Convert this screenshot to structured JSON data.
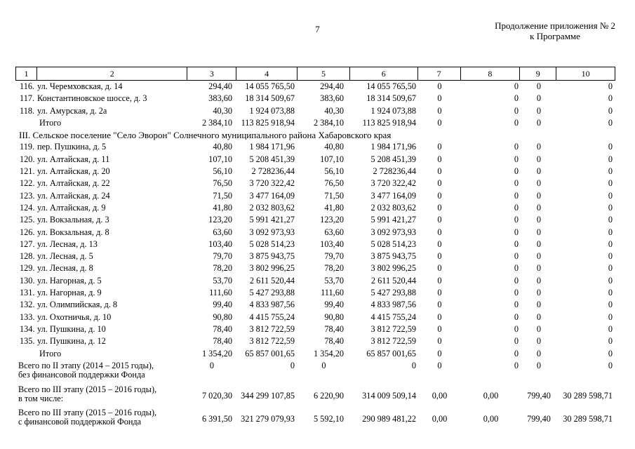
{
  "colors": {
    "text": "#000000",
    "background": "#ffffff",
    "border": "#000000"
  },
  "page_header": {
    "page_number": "7",
    "continuation_line1": "Продолжение приложения № 2",
    "continuation_line2": "к Программе"
  },
  "table": {
    "columns": [
      "1",
      "2",
      "3",
      "4",
      "5",
      "6",
      "7",
      "8",
      "9",
      "10"
    ],
    "rows": [
      {
        "type": "data",
        "cells": [
          "116.",
          "ул. Черемховская, д. 14",
          "294,40",
          "14 055 765,50",
          "294,40",
          "14 055 765,50",
          "0",
          "0",
          "0",
          "0"
        ]
      },
      {
        "type": "data",
        "cells": [
          "117.",
          "Константиновское шоссе, д. 3",
          "383,60",
          "18 314 509,67",
          "383,60",
          "18 314 509,67",
          "0",
          "0",
          "0",
          "0"
        ]
      },
      {
        "type": "data",
        "cells": [
          "118.",
          "ул. Амурская, д. 2а",
          "40,30",
          "1 924 073,88",
          "40,30",
          "1 924 073,88",
          "0",
          "0",
          "0",
          "0"
        ]
      },
      {
        "type": "total",
        "cells": [
          "",
          "Итого",
          "2 384,10",
          "113 825 918,94",
          "2 384,10",
          "113 825 918,94",
          "0",
          "0",
          "0",
          "0"
        ]
      },
      {
        "type": "section",
        "label": "III. Сельское поселение \"Село Эворон\" Солнечного муниципального района Хабаровского края"
      },
      {
        "type": "data",
        "cells": [
          "119.",
          "пер. Пушкина, д. 5",
          "40,80",
          "1 984 171,96",
          "40,80",
          "1 984 171,96",
          "0",
          "0",
          "0",
          "0"
        ]
      },
      {
        "type": "data",
        "cells": [
          "120.",
          "ул. Алтайская, д. 11",
          "107,10",
          "5 208 451,39",
          "107,10",
          "5 208 451,39",
          "0",
          "0",
          "0",
          "0"
        ]
      },
      {
        "type": "data",
        "cells": [
          "121.",
          "ул. Алтайская, д. 20",
          "56,10",
          "2 728236,44",
          "56,10",
          "2 728236,44",
          "0",
          "0",
          "0",
          "0"
        ]
      },
      {
        "type": "data",
        "cells": [
          "122.",
          "ул. Алтайская, д. 22",
          "76,50",
          "3 720 322,42",
          "76,50",
          "3 720 322,42",
          "0",
          "0",
          "0",
          "0"
        ]
      },
      {
        "type": "data",
        "cells": [
          "123.",
          "ул. Алтайская, д. 24",
          "71,50",
          "3 477 164,09",
          "71,50",
          "3 477 164,09",
          "0",
          "0",
          "0",
          "0"
        ]
      },
      {
        "type": "data",
        "cells": [
          "124.",
          "ул. Алтайская, д. 9",
          "41,80",
          "2 032 803,62",
          "41,80",
          "2 032 803,62",
          "0",
          "0",
          "0",
          "0"
        ]
      },
      {
        "type": "data",
        "cells": [
          "125.",
          "ул. Вокзальная, д. 3",
          "123,20",
          "5 991 421,27",
          "123,20",
          "5 991 421,27",
          "0",
          "0",
          "0",
          "0"
        ]
      },
      {
        "type": "data",
        "cells": [
          "126.",
          "ул. Вокзальная, д. 8",
          "63,60",
          "3 092 973,93",
          "63,60",
          "3 092 973,93",
          "0",
          "0",
          "0",
          "0"
        ]
      },
      {
        "type": "data",
        "cells": [
          "127.",
          "ул. Лесная, д. 13",
          "103,40",
          "5 028 514,23",
          "103,40",
          "5 028 514,23",
          "0",
          "0",
          "0",
          "0"
        ]
      },
      {
        "type": "data",
        "cells": [
          "128.",
          "ул. Лесная, д. 5",
          "79,70",
          "3 875 943,75",
          "79,70",
          "3 875 943,75",
          "0",
          "0",
          "0",
          "0"
        ]
      },
      {
        "type": "data",
        "cells": [
          "129.",
          "ул. Лесная, д. 8",
          "78,20",
          "3 802 996,25",
          "78,20",
          "3 802 996,25",
          "0",
          "0",
          "0",
          "0"
        ]
      },
      {
        "type": "data",
        "cells": [
          "130.",
          "ул. Нагорная, д. 5",
          "53,70",
          "2 611 520,44",
          "53,70",
          "2 611 520,44",
          "0",
          "0",
          "0",
          "0"
        ]
      },
      {
        "type": "data",
        "cells": [
          "131.",
          "ул. Нагорная, д. 9",
          "111,60",
          "5 427 293,88",
          "111,60",
          "5 427 293,88",
          "0",
          "0",
          "0",
          "0"
        ]
      },
      {
        "type": "data",
        "cells": [
          "132.",
          "ул. Олимпийская, д. 8",
          "99,40",
          "4 833 987,56",
          "99,40",
          "4 833 987,56",
          "0",
          "0",
          "0",
          "0"
        ]
      },
      {
        "type": "data",
        "cells": [
          "133.",
          "ул. Охотничья, д. 10",
          "90,80",
          "4 415 755,24",
          "90,80",
          "4 415 755,24",
          "0",
          "0",
          "0",
          "0"
        ]
      },
      {
        "type": "data",
        "cells": [
          "134.",
          "ул. Пушкина, д. 10",
          "78,40",
          "3 812 722,59",
          "78,40",
          "3 812 722,59",
          "0",
          "0",
          "0",
          "0"
        ]
      },
      {
        "type": "data",
        "cells": [
          "135.",
          "ул. Пушкина, д. 12",
          "78,40",
          "3 812 722,59",
          "78,40",
          "3 812 722,59",
          "0",
          "0",
          "0",
          "0"
        ]
      },
      {
        "type": "total",
        "cells": [
          "",
          "Итого",
          "1 354,20",
          "65 857 001,65",
          "1 354,20",
          "65 857 001,65",
          "0",
          "0",
          "0",
          "0"
        ]
      },
      {
        "type": "summary",
        "variant": "stage2",
        "label_line1": "Всего по II этапу (2014 – 2015 годы),",
        "label_line2": "без финансовой поддержки Фонда",
        "values": [
          "0",
          "0",
          "0",
          "0",
          "0",
          "0",
          "0",
          "0"
        ]
      },
      {
        "type": "summary",
        "variant": "stage3",
        "label_line1": "Всего по III этапу (2015 – 2016 годы),",
        "label_line2": "в том числе:",
        "values": [
          "7 020,30",
          "344 299 107,85",
          "6 220,90",
          "314 009 509,14",
          "0,00",
          "0,00",
          "799,40",
          "30 289 598,71"
        ]
      },
      {
        "type": "summary",
        "variant": "stage3",
        "label_line1": "Всего по III этапу (2015 – 2016 годы),",
        "label_line2": "с финансовой поддержкой Фонда",
        "values": [
          "6 391,50",
          "321 279 079,93",
          "5 592,10",
          "290 989 481,22",
          "0,00",
          "0,00",
          "799,40",
          "30 289 598,71"
        ]
      }
    ]
  }
}
